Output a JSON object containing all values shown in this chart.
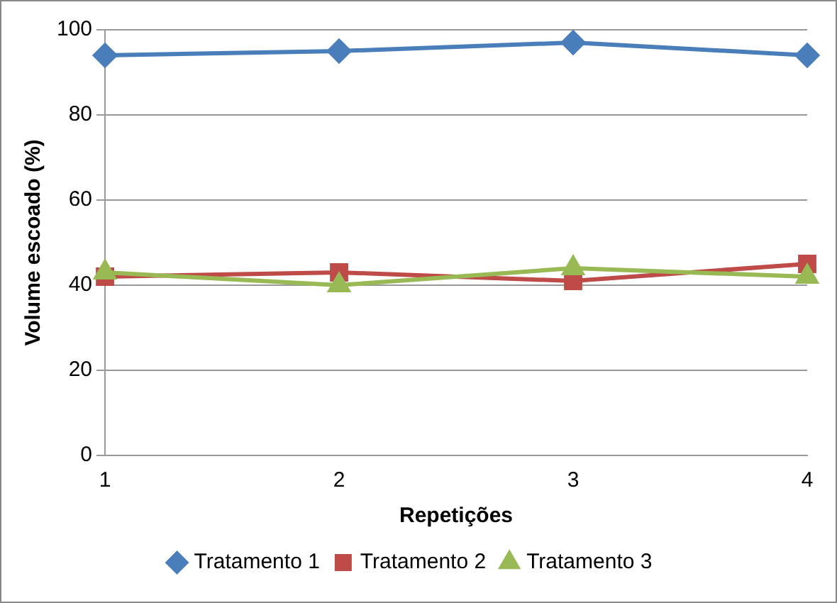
{
  "chart_data": {
    "type": "line",
    "xlabel": "Repetições",
    "ylabel": "Volume escoado (%)",
    "x": [
      1,
      2,
      3,
      4
    ],
    "xlim": [
      1,
      4
    ],
    "xticks": [
      1,
      2,
      3,
      4
    ],
    "ylim": [
      0,
      100
    ],
    "yticks": [
      0,
      20,
      40,
      60,
      80,
      100
    ],
    "grid": "y",
    "legend": "bottom",
    "series": [
      {
        "name": "Tratamento 1",
        "color": "#4a7ebb",
        "marker": "diamond",
        "values": [
          94,
          95,
          97,
          94
        ]
      },
      {
        "name": "Tratamento 2",
        "color": "#be4b48",
        "marker": "square",
        "values": [
          42,
          43,
          41,
          45
        ]
      },
      {
        "name": "Tratamento 3",
        "color": "#98b954",
        "marker": "triangle",
        "values": [
          43,
          40,
          44,
          42
        ]
      }
    ]
  }
}
